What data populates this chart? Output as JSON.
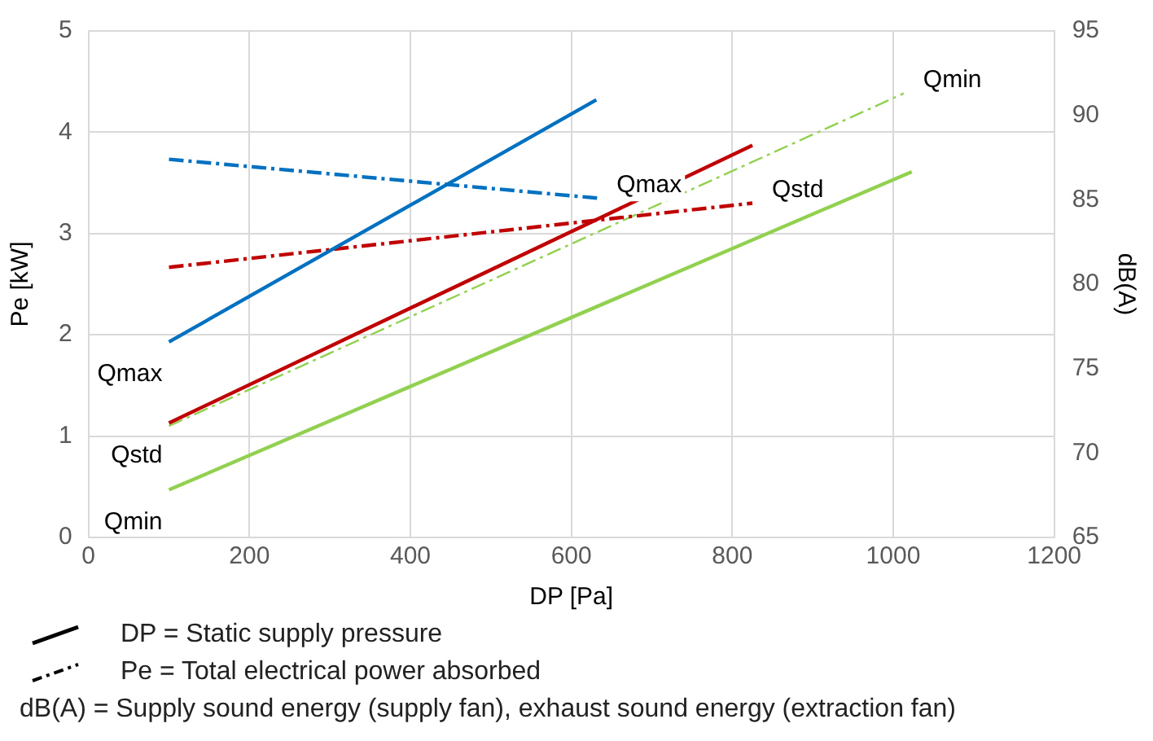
{
  "chart_data": {
    "type": "line",
    "xlabel": "DP [Pa]",
    "ylabel": "Pe [kW]",
    "y2label": "dB(A)",
    "xlim": [
      0,
      1200
    ],
    "xticks": [
      0,
      200,
      400,
      600,
      800,
      1000,
      1200
    ],
    "ylim": [
      0,
      5
    ],
    "yticks": [
      0,
      1,
      2,
      3,
      4,
      5
    ],
    "y2lim": [
      65,
      95
    ],
    "y2ticks": [
      65,
      70,
      75,
      80,
      85,
      90,
      95
    ],
    "grid": true,
    "marker": "none",
    "series": [
      {
        "name": "Qmax",
        "color": "#0070c0",
        "x": [
          100,
          631
        ],
        "values": [
          1.93,
          4.32
        ],
        "line_style": "solid"
      },
      {
        "name": "Qstd",
        "color": "#c00000",
        "x": [
          100,
          825
        ],
        "values": [
          1.13,
          3.87
        ],
        "line_style": "solid"
      },
      {
        "name": "Qmin",
        "color": "#92d050",
        "x": [
          100,
          1023
        ],
        "values": [
          0.47,
          3.61
        ],
        "line_style": "solid"
      },
      {
        "name": "Qmax",
        "color": "#0070c0",
        "x": [
          100,
          632
        ],
        "values": [
          87.4,
          85.1
        ],
        "axis": "y2",
        "line_style": "dashed"
      },
      {
        "name": "Qstd",
        "color": "#c00000",
        "x": [
          100,
          825
        ],
        "values": [
          81.0,
          84.8
        ],
        "axis": "y2",
        "line_style": "dashed"
      },
      {
        "name": "Qmin",
        "color": "#92d050",
        "x": [
          100,
          1013
        ],
        "values": [
          71.6,
          91.3
        ],
        "axis": "y2",
        "line_style": "dashed"
      }
    ],
    "annotations": [
      "DP = Static supply pressure",
      "Pe = Total electrical power absorbed",
      "dB(A) = Supply sound energy (supply fan), exhaust sound energy (extraction fan)"
    ]
  }
}
